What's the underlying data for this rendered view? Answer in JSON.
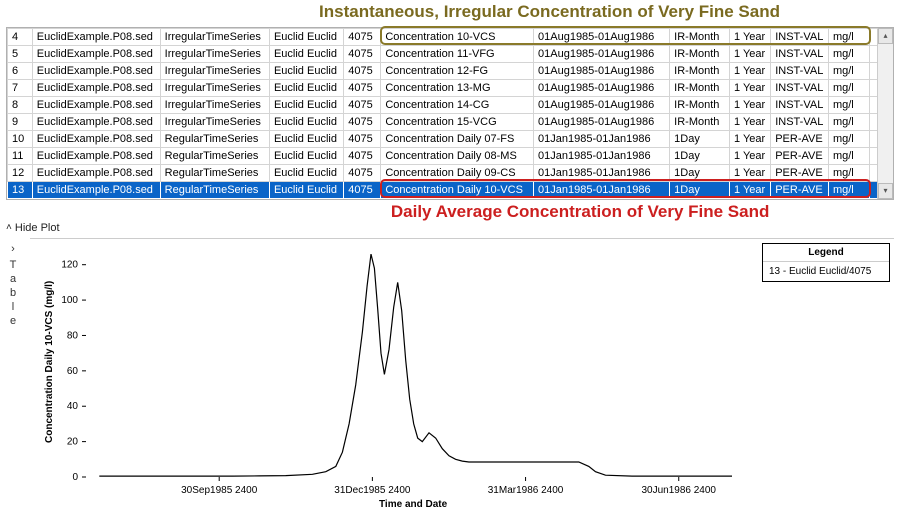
{
  "annotations": {
    "top_text": "Instantaneous, Irregular Concentration of Very Fine Sand",
    "top_color": "#7a6a20",
    "mid_text": "Daily Average Concentration of Very Fine Sand",
    "mid_color": "#cc1f1f"
  },
  "table": {
    "selected_row_index": 9,
    "selected_bg": "#0a64c8",
    "selected_fg": "#ffffff",
    "olive_box_color": "#8a7a2a",
    "red_box_color": "#cc1f1f",
    "rows": [
      {
        "n": "4",
        "file": "EuclidExample.P08.sed",
        "type": "IrregularTimeSeries",
        "loc": "Euclid Euclid",
        "id": "4075",
        "param": "Concentration 10-VCS",
        "range": "01Aug1985-01Aug1986",
        "step": "IR-Month",
        "span": "1 Year",
        "agg": "INST-VAL",
        "unit": "mg/l"
      },
      {
        "n": "5",
        "file": "EuclidExample.P08.sed",
        "type": "IrregularTimeSeries",
        "loc": "Euclid Euclid",
        "id": "4075",
        "param": "Concentration 11-VFG",
        "range": "01Aug1985-01Aug1986",
        "step": "IR-Month",
        "span": "1 Year",
        "agg": "INST-VAL",
        "unit": "mg/l"
      },
      {
        "n": "6",
        "file": "EuclidExample.P08.sed",
        "type": "IrregularTimeSeries",
        "loc": "Euclid Euclid",
        "id": "4075",
        "param": "Concentration 12-FG",
        "range": "01Aug1985-01Aug1986",
        "step": "IR-Month",
        "span": "1 Year",
        "agg": "INST-VAL",
        "unit": "mg/l"
      },
      {
        "n": "7",
        "file": "EuclidExample.P08.sed",
        "type": "IrregularTimeSeries",
        "loc": "Euclid Euclid",
        "id": "4075",
        "param": "Concentration 13-MG",
        "range": "01Aug1985-01Aug1986",
        "step": "IR-Month",
        "span": "1 Year",
        "agg": "INST-VAL",
        "unit": "mg/l"
      },
      {
        "n": "8",
        "file": "EuclidExample.P08.sed",
        "type": "IrregularTimeSeries",
        "loc": "Euclid Euclid",
        "id": "4075",
        "param": "Concentration 14-CG",
        "range": "01Aug1985-01Aug1986",
        "step": "IR-Month",
        "span": "1 Year",
        "agg": "INST-VAL",
        "unit": "mg/l"
      },
      {
        "n": "9",
        "file": "EuclidExample.P08.sed",
        "type": "IrregularTimeSeries",
        "loc": "Euclid Euclid",
        "id": "4075",
        "param": "Concentration 15-VCG",
        "range": "01Aug1985-01Aug1986",
        "step": "IR-Month",
        "span": "1 Year",
        "agg": "INST-VAL",
        "unit": "mg/l"
      },
      {
        "n": "10",
        "file": "EuclidExample.P08.sed",
        "type": "RegularTimeSeries",
        "loc": "Euclid Euclid",
        "id": "4075",
        "param": "Concentration Daily 07-FS",
        "range": "01Jan1985-01Jan1986",
        "step": "1Day",
        "span": "1 Year",
        "agg": "PER-AVE",
        "unit": "mg/l"
      },
      {
        "n": "11",
        "file": "EuclidExample.P08.sed",
        "type": "RegularTimeSeries",
        "loc": "Euclid Euclid",
        "id": "4075",
        "param": "Concentration Daily 08-MS",
        "range": "01Jan1985-01Jan1986",
        "step": "1Day",
        "span": "1 Year",
        "agg": "PER-AVE",
        "unit": "mg/l"
      },
      {
        "n": "12",
        "file": "EuclidExample.P08.sed",
        "type": "RegularTimeSeries",
        "loc": "Euclid Euclid",
        "id": "4075",
        "param": "Concentration Daily 09-CS",
        "range": "01Jan1985-01Jan1986",
        "step": "1Day",
        "span": "1 Year",
        "agg": "PER-AVE",
        "unit": "mg/l"
      },
      {
        "n": "13",
        "file": "EuclidExample.P08.sed",
        "type": "RegularTimeSeries",
        "loc": "Euclid Euclid",
        "id": "4075",
        "param": "Concentration Daily 10-VCS",
        "range": "01Jan1985-01Jan1986",
        "step": "1Day",
        "span": "1 Year",
        "agg": "PER-AVE",
        "unit": "mg/l"
      }
    ]
  },
  "hideplot_label": "Hide Plot",
  "side_tab_label": "Table",
  "chart": {
    "type": "line",
    "ylabel": "Concentration Daily 10-VCS (mg/l)",
    "xlabel": "Time and Date",
    "legend_title": "Legend",
    "legend_item": "13 - Euclid Euclid/4075",
    "line_color": "#000000",
    "line_width": 1.2,
    "background_color": "#ffffff",
    "axis_color": "#000000",
    "tick_color": "#000000",
    "label_fontsize": 10,
    "ylim": [
      0,
      130
    ],
    "ytick_step": 20,
    "yticks": [
      0,
      20,
      40,
      60,
      80,
      100,
      120
    ],
    "xticks": [
      "30Sep1985 2400",
      "31Dec1985 2400",
      "31Mar1986 2400",
      "30Jun1986 2400"
    ],
    "xtick_positions": [
      0.2,
      0.43,
      0.66,
      0.89
    ],
    "series": [
      [
        0.02,
        0.5
      ],
      [
        0.06,
        0.5
      ],
      [
        0.1,
        0.5
      ],
      [
        0.14,
        0.5
      ],
      [
        0.18,
        0.5
      ],
      [
        0.22,
        0.5
      ],
      [
        0.26,
        0.6
      ],
      [
        0.3,
        0.8
      ],
      [
        0.34,
        1.5
      ],
      [
        0.36,
        3.0
      ],
      [
        0.375,
        6.0
      ],
      [
        0.385,
        14.0
      ],
      [
        0.395,
        30.0
      ],
      [
        0.405,
        52.0
      ],
      [
        0.415,
        82.0
      ],
      [
        0.422,
        108.0
      ],
      [
        0.428,
        126.0
      ],
      [
        0.433,
        118.0
      ],
      [
        0.438,
        95.0
      ],
      [
        0.443,
        70.0
      ],
      [
        0.448,
        58.0
      ],
      [
        0.455,
        72.0
      ],
      [
        0.462,
        96.0
      ],
      [
        0.468,
        110.0
      ],
      [
        0.474,
        94.0
      ],
      [
        0.48,
        66.0
      ],
      [
        0.486,
        44.0
      ],
      [
        0.492,
        30.0
      ],
      [
        0.498,
        22.0
      ],
      [
        0.505,
        20.0
      ],
      [
        0.515,
        25.0
      ],
      [
        0.525,
        22.0
      ],
      [
        0.535,
        16.0
      ],
      [
        0.545,
        12.0
      ],
      [
        0.555,
        10.0
      ],
      [
        0.565,
        9.0
      ],
      [
        0.575,
        8.5
      ],
      [
        0.59,
        8.5
      ],
      [
        0.62,
        8.5
      ],
      [
        0.66,
        8.5
      ],
      [
        0.7,
        8.5
      ],
      [
        0.74,
        8.5
      ],
      [
        0.755,
        6.0
      ],
      [
        0.765,
        3.0
      ],
      [
        0.78,
        1.0
      ],
      [
        0.82,
        0.5
      ],
      [
        0.86,
        0.5
      ],
      [
        0.9,
        0.5
      ],
      [
        0.94,
        0.5
      ],
      [
        0.97,
        0.5
      ]
    ]
  }
}
